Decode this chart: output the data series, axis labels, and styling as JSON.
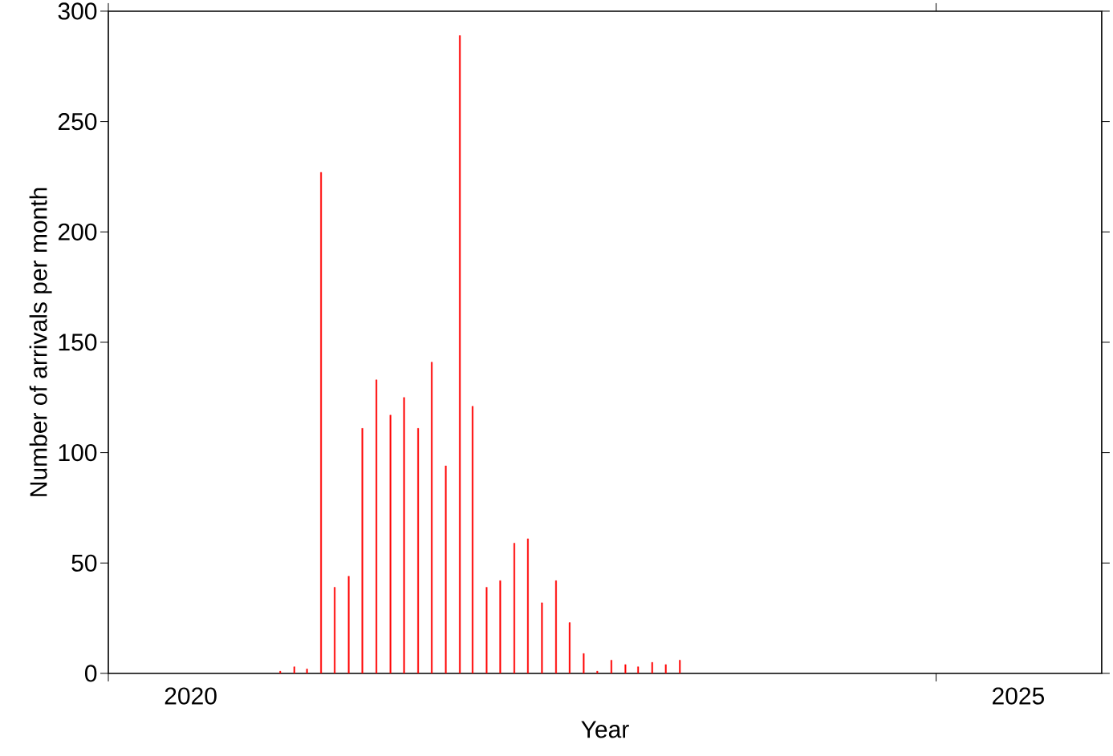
{
  "chart_data": {
    "type": "bar",
    "xlabel": "Year",
    "ylabel": "Number of arrivals per month",
    "x": [
      "2021-01-15",
      "2021-02-15",
      "2021-03-15",
      "2021-04-15",
      "2021-05-15",
      "2021-06-15",
      "2021-07-15",
      "2021-08-15",
      "2021-09-15",
      "2021-10-15",
      "2021-11-15",
      "2021-12-15",
      "2022-01-15",
      "2022-02-15",
      "2022-03-15",
      "2022-04-15",
      "2022-05-15",
      "2022-06-15",
      "2022-07-15",
      "2022-08-15",
      "2022-09-15",
      "2022-10-15",
      "2022-11-15",
      "2022-12-15",
      "2023-01-15",
      "2023-02-15",
      "2023-03-15",
      "2023-04-15",
      "2023-05-15",
      "2023-06-15"
    ],
    "values": [
      1,
      3,
      2,
      227,
      39,
      44,
      111,
      133,
      117,
      125,
      111,
      141,
      94,
      289,
      121,
      39,
      42,
      59,
      61,
      32,
      42,
      23,
      9,
      1,
      6,
      4,
      3,
      5,
      4,
      6
    ],
    "color": "#ff0000",
    "xlim": [
      "2020",
      "2026"
    ],
    "xticks": [
      {
        "value": "2020",
        "label": null
      },
      {
        "value": "2020-07",
        "label": "2020"
      },
      {
        "value": "2025",
        "label": null
      },
      {
        "value": "2025-07",
        "label": "2025"
      }
    ],
    "ylim": [
      0,
      300
    ],
    "yticks": [
      0,
      50,
      100,
      150,
      200,
      250,
      300
    ]
  }
}
